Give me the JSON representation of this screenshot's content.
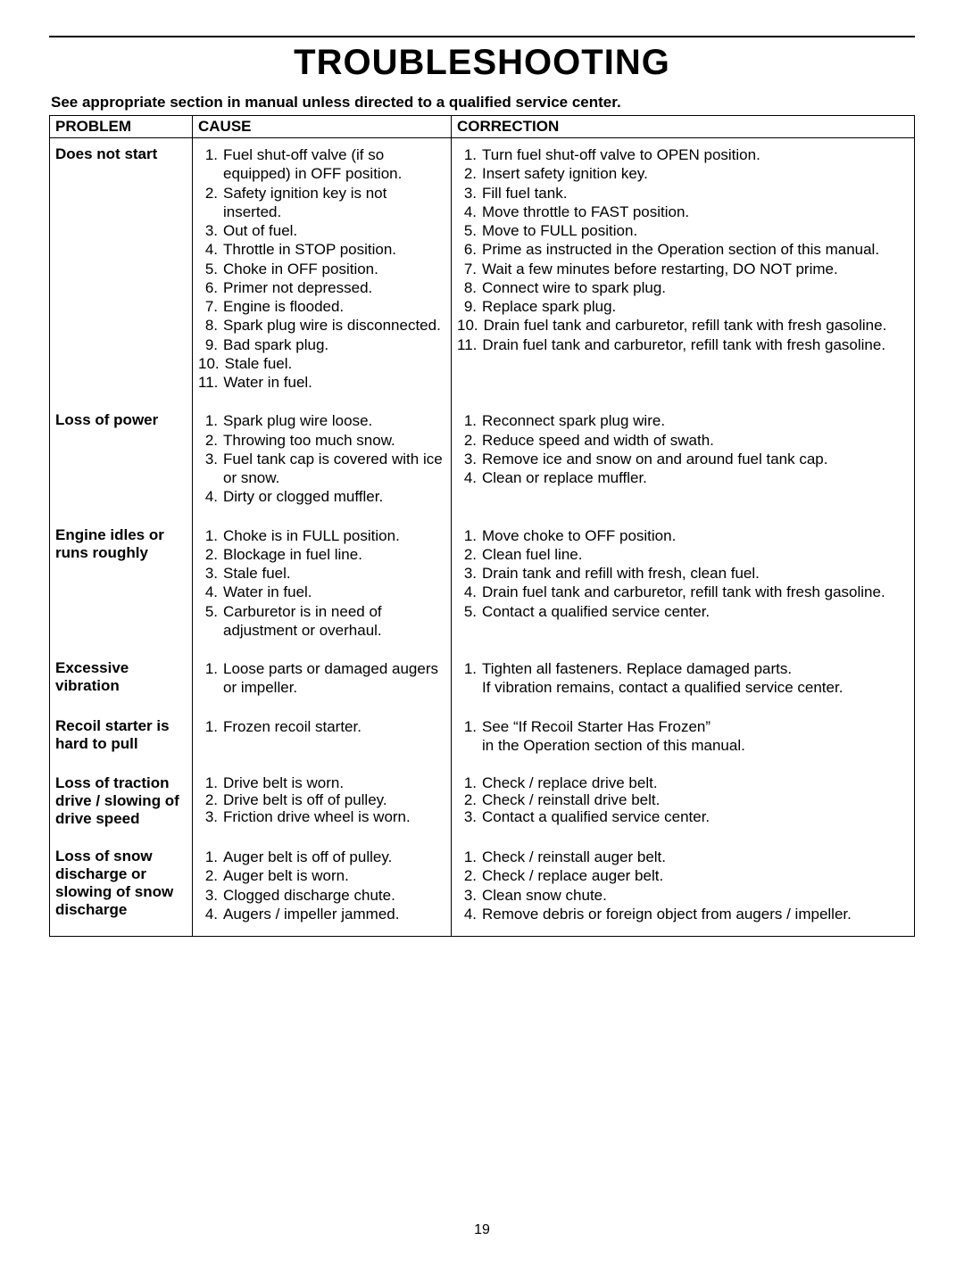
{
  "page": {
    "title": "TROUBLESHOOTING",
    "intro": "See appropriate section in manual unless directed to a qualified service center.",
    "page_number": "19",
    "columns": {
      "problem": "PROBLEM",
      "cause": "CAUSE",
      "correction": "CORRECTION"
    },
    "rows": [
      {
        "problem": "Does not start",
        "tight": false,
        "causes": [
          "Fuel shut-off valve (if so equipped) in OFF position.",
          "Safety ignition key is not inserted.",
          "Out of fuel.",
          "Throttle in STOP position.",
          "Choke in OFF position.",
          "Primer not depressed.",
          "Engine is flooded.",
          "Spark plug wire is disconnected.",
          "Bad spark plug.",
          "Stale fuel.",
          "Water in fuel."
        ],
        "corrections": [
          "Turn fuel shut-off valve to OPEN position.\n ",
          "Insert safety ignition key.\n ",
          "Fill fuel tank.",
          "Move throttle to FAST position.",
          "Move to FULL position.",
          "Prime as instructed in the Operation section of this manual.",
          "Wait a few minutes before restarting, DO NOT prime.",
          "Connect wire to spark plug.\n ",
          "Replace spark plug.",
          "Drain fuel tank and carburetor, refill tank with fresh gasoline.",
          "Drain fuel tank and carburetor, refill tank with fresh gasoline."
        ]
      },
      {
        "problem": "Loss of power",
        "tight": false,
        "causes": [
          "Spark plug wire loose.",
          "Throwing too much snow.",
          "Fuel tank cap is covered with ice or snow.",
          "Dirty or clogged muffler."
        ],
        "corrections": [
          "Reconnect spark plug wire.",
          "Reduce speed and width of swath.",
          "Remove ice and snow on and around fuel tank cap.\n ",
          "Clean or replace muffler."
        ]
      },
      {
        "problem": "Engine idles or runs roughly",
        "tight": false,
        "causes": [
          "Choke is in FULL position.",
          "Blockage in fuel line.",
          "Stale fuel.",
          "Water in fuel.",
          "Carburetor is in need of adjustment or overhaul."
        ],
        "corrections": [
          "Move choke to OFF position.",
          "Clean fuel line.",
          "Drain tank and refill with fresh, clean fuel.",
          "Drain fuel tank and carburetor, refill tank with fresh gasoline.",
          "Contact a qualified service center."
        ]
      },
      {
        "problem": "Excessive vibration",
        "tight": false,
        "causes": [
          "Loose parts or damaged augers or impeller."
        ],
        "corrections": [
          "Tighten all fasteners.  Replace damaged parts.\nIf vibration remains, contact a qualified service center."
        ]
      },
      {
        "problem": "Recoil starter is hard to pull",
        "tight": false,
        "causes": [
          "Frozen recoil starter."
        ],
        "corrections": [
          "See “If Recoil Starter Has Frozen”\nin the Operation section of this manual."
        ]
      },
      {
        "problem": "Loss of traction drive / slowing of drive speed",
        "tight": true,
        "causes": [
          "Drive belt is worn.",
          "Drive belt is off of pulley.",
          "Friction drive wheel is worn."
        ],
        "corrections": [
          "Check / replace drive belt.",
          "Check / reinstall drive belt.",
          "Contact a qualified service center."
        ]
      },
      {
        "problem": "Loss of snow discharge or slowing of snow discharge",
        "tight": false,
        "causes": [
          "Auger belt is off of pulley.",
          "Auger belt is worn.",
          "Clogged discharge chute.",
          "Augers / impeller jammed."
        ],
        "corrections": [
          "Check / reinstall auger belt.",
          "Check / replace auger belt.",
          "Clean snow chute.",
          "Remove debris or foreign object from augers / impeller."
        ]
      }
    ]
  }
}
